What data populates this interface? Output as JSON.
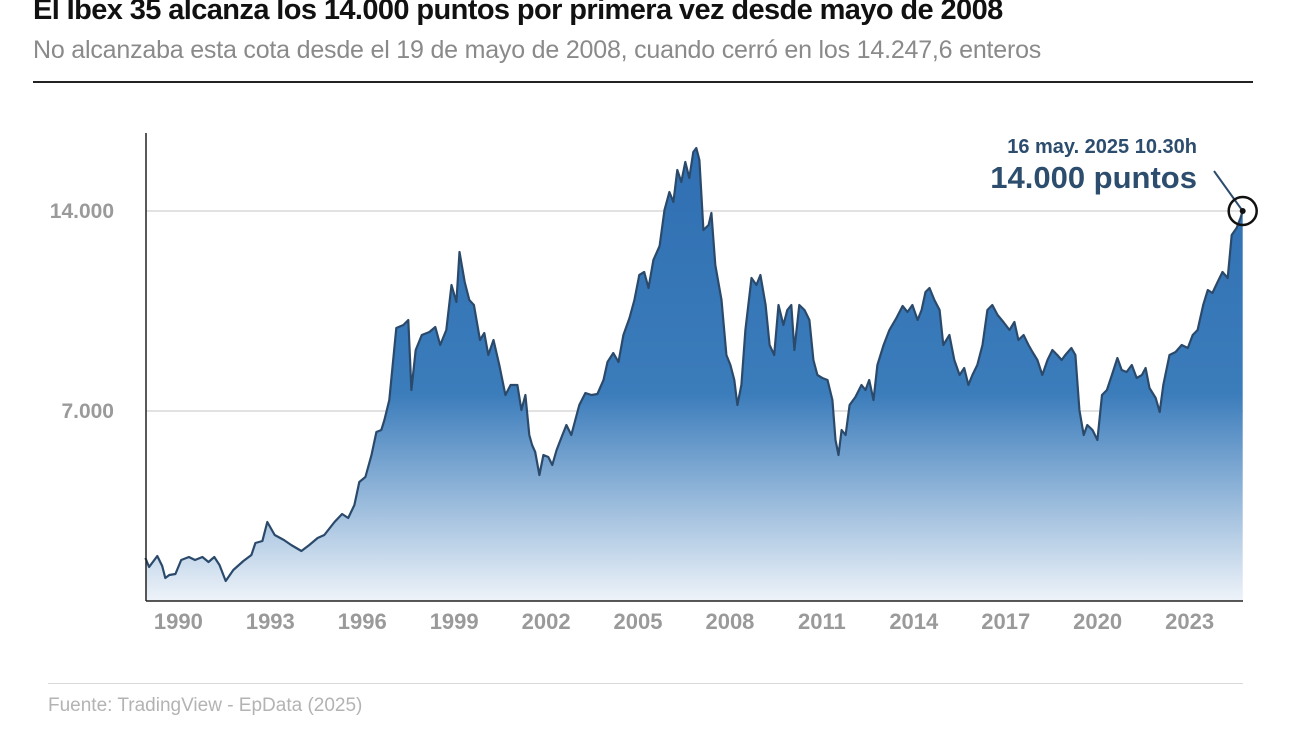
{
  "header": {
    "title": "El Ibex 35 alcanza los 14.000 puntos por primera vez desde mayo de 2008",
    "subtitle": "No alcanzaba esta cota desde el 19 de mayo de 2008, cuando cerró en los 14.247,6 enteros"
  },
  "footer": {
    "source": "Fuente: TradingView - EpData (2025)"
  },
  "chart_data": {
    "type": "area",
    "title": "",
    "xlabel": "",
    "ylabel": "",
    "xlim": [
      1989.4,
      2025.2
    ],
    "ylim": [
      350,
      16800
    ],
    "grid": "horizontal",
    "y_ticks": [
      {
        "value": 7000,
        "label": "7.000"
      },
      {
        "value": 14000,
        "label": "14.000"
      }
    ],
    "x_ticks": [
      {
        "value": 1990,
        "label": "1990"
      },
      {
        "value": 1993,
        "label": "1993"
      },
      {
        "value": 1996,
        "label": "1996"
      },
      {
        "value": 1999,
        "label": "1999"
      },
      {
        "value": 2002,
        "label": "2002"
      },
      {
        "value": 2005,
        "label": "2005"
      },
      {
        "value": 2008,
        "label": "2008"
      },
      {
        "value": 2011,
        "label": "2011"
      },
      {
        "value": 2014,
        "label": "2014"
      },
      {
        "value": 2017,
        "label": "2017"
      },
      {
        "value": 2020,
        "label": "2020"
      },
      {
        "value": 2023,
        "label": "2023"
      }
    ],
    "colors": {
      "line": "#2b4a6b",
      "fill_top": "#2f6fb2",
      "fill_bottom": "#eef3f9",
      "annotation": "#2d4d6e"
    },
    "annotation": {
      "date": "16 may. 2025 10.30h",
      "value_label": "14.000 puntos",
      "x": 2025.19,
      "y": 14000
    },
    "points": [
      [
        1989.38,
        1855
      ],
      [
        1989.5,
        1540
      ],
      [
        1989.77,
        1925
      ],
      [
        1989.93,
        1575
      ],
      [
        1990.03,
        1155
      ],
      [
        1990.16,
        1260
      ],
      [
        1990.36,
        1295
      ],
      [
        1990.55,
        1785
      ],
      [
        1990.8,
        1890
      ],
      [
        1991.0,
        1785
      ],
      [
        1991.24,
        1890
      ],
      [
        1991.44,
        1715
      ],
      [
        1991.63,
        1890
      ],
      [
        1991.8,
        1610
      ],
      [
        1992.0,
        1050
      ],
      [
        1992.25,
        1435
      ],
      [
        1992.58,
        1750
      ],
      [
        1992.84,
        1960
      ],
      [
        1992.97,
        2380
      ],
      [
        1993.2,
        2450
      ],
      [
        1993.36,
        3115
      ],
      [
        1993.6,
        2660
      ],
      [
        1993.9,
        2485
      ],
      [
        1994.14,
        2310
      ],
      [
        1994.47,
        2100
      ],
      [
        1994.73,
        2310
      ],
      [
        1995.0,
        2555
      ],
      [
        1995.22,
        2660
      ],
      [
        1995.55,
        3115
      ],
      [
        1995.8,
        3395
      ],
      [
        1996.0,
        3255
      ],
      [
        1996.2,
        3710
      ],
      [
        1996.36,
        4515
      ],
      [
        1996.56,
        4690
      ],
      [
        1996.76,
        5460
      ],
      [
        1996.92,
        6265
      ],
      [
        1997.08,
        6335
      ],
      [
        1997.18,
        6685
      ],
      [
        1997.34,
        7385
      ],
      [
        1997.57,
        9905
      ],
      [
        1997.8,
        10010
      ],
      [
        1997.96,
        10185
      ],
      [
        1998.06,
        7735
      ],
      [
        1998.2,
        9135
      ],
      [
        1998.4,
        9660
      ],
      [
        1998.65,
        9765
      ],
      [
        1998.84,
        9940
      ],
      [
        1999.0,
        9310
      ],
      [
        1999.2,
        9835
      ],
      [
        1999.37,
        11410
      ],
      [
        1999.53,
        10815
      ],
      [
        1999.63,
        12565
      ],
      [
        1999.8,
        11515
      ],
      [
        1999.95,
        10885
      ],
      [
        2000.1,
        10710
      ],
      [
        2000.3,
        9485
      ],
      [
        2000.44,
        9730
      ],
      [
        2000.57,
        8960
      ],
      [
        2000.74,
        9485
      ],
      [
        2000.93,
        8610
      ],
      [
        2001.13,
        7560
      ],
      [
        2001.3,
        7910
      ],
      [
        2001.52,
        7910
      ],
      [
        2001.65,
        7035
      ],
      [
        2001.78,
        7560
      ],
      [
        2001.91,
        6160
      ],
      [
        2002.0,
        5810
      ],
      [
        2002.1,
        5565
      ],
      [
        2002.24,
        4760
      ],
      [
        2002.37,
        5460
      ],
      [
        2002.53,
        5390
      ],
      [
        2002.66,
        5110
      ],
      [
        2002.8,
        5635
      ],
      [
        2002.99,
        6160
      ],
      [
        2003.12,
        6510
      ],
      [
        2003.28,
        6160
      ],
      [
        2003.54,
        7210
      ],
      [
        2003.74,
        7630
      ],
      [
        2003.94,
        7560
      ],
      [
        2004.13,
        7595
      ],
      [
        2004.33,
        8085
      ],
      [
        2004.46,
        8715
      ],
      [
        2004.65,
        9030
      ],
      [
        2004.82,
        8715
      ],
      [
        2004.98,
        9660
      ],
      [
        2005.18,
        10255
      ],
      [
        2005.34,
        10885
      ],
      [
        2005.5,
        11760
      ],
      [
        2005.66,
        11865
      ],
      [
        2005.8,
        11305
      ],
      [
        2005.96,
        12285
      ],
      [
        2006.16,
        12775
      ],
      [
        2006.32,
        14035
      ],
      [
        2006.48,
        14665
      ],
      [
        2006.61,
        14315
      ],
      [
        2006.74,
        15435
      ],
      [
        2006.87,
        15015
      ],
      [
        2007.0,
        15715
      ],
      [
        2007.13,
        15155
      ],
      [
        2007.26,
        16065
      ],
      [
        2007.36,
        16205
      ],
      [
        2007.46,
        15785
      ],
      [
        2007.59,
        13335
      ],
      [
        2007.76,
        13510
      ],
      [
        2007.85,
        13930
      ],
      [
        2007.98,
        12110
      ],
      [
        2008.18,
        10885
      ],
      [
        2008.34,
        8960
      ],
      [
        2008.47,
        8610
      ],
      [
        2008.6,
        8085
      ],
      [
        2008.7,
        7210
      ],
      [
        2008.83,
        7910
      ],
      [
        2008.96,
        9835
      ],
      [
        2009.16,
        11655
      ],
      [
        2009.32,
        11410
      ],
      [
        2009.45,
        11760
      ],
      [
        2009.62,
        10710
      ],
      [
        2009.75,
        9310
      ],
      [
        2009.9,
        8960
      ],
      [
        2010.04,
        10710
      ],
      [
        2010.2,
        10010
      ],
      [
        2010.33,
        10535
      ],
      [
        2010.46,
        10710
      ],
      [
        2010.56,
        9135
      ],
      [
        2010.72,
        10710
      ],
      [
        2010.89,
        10535
      ],
      [
        2011.05,
        10185
      ],
      [
        2011.18,
        8785
      ],
      [
        2011.31,
        8260
      ],
      [
        2011.47,
        8155
      ],
      [
        2011.64,
        8085
      ],
      [
        2011.8,
        7385
      ],
      [
        2011.9,
        5985
      ],
      [
        2012.0,
        5460
      ],
      [
        2012.1,
        6335
      ],
      [
        2012.23,
        6160
      ],
      [
        2012.36,
        7210
      ],
      [
        2012.55,
        7490
      ],
      [
        2012.75,
        7910
      ],
      [
        2012.88,
        7735
      ],
      [
        2013.0,
        8085
      ],
      [
        2013.14,
        7385
      ],
      [
        2013.27,
        8610
      ],
      [
        2013.47,
        9310
      ],
      [
        2013.66,
        9835
      ],
      [
        2013.89,
        10255
      ],
      [
        2014.09,
        10675
      ],
      [
        2014.25,
        10465
      ],
      [
        2014.41,
        10710
      ],
      [
        2014.58,
        10185
      ],
      [
        2014.71,
        10535
      ],
      [
        2014.84,
        11165
      ],
      [
        2014.97,
        11305
      ],
      [
        2015.13,
        10885
      ],
      [
        2015.3,
        10535
      ],
      [
        2015.42,
        9310
      ],
      [
        2015.62,
        9660
      ],
      [
        2015.78,
        8785
      ],
      [
        2015.95,
        8260
      ],
      [
        2016.1,
        8505
      ],
      [
        2016.24,
        7910
      ],
      [
        2016.37,
        8260
      ],
      [
        2016.53,
        8610
      ],
      [
        2016.7,
        9310
      ],
      [
        2016.86,
        10535
      ],
      [
        2017.02,
        10710
      ],
      [
        2017.19,
        10360
      ],
      [
        2017.38,
        10115
      ],
      [
        2017.58,
        9835
      ],
      [
        2017.74,
        10115
      ],
      [
        2017.87,
        9485
      ],
      [
        2018.04,
        9660
      ],
      [
        2018.2,
        9310
      ],
      [
        2018.33,
        9065
      ],
      [
        2018.49,
        8785
      ],
      [
        2018.65,
        8260
      ],
      [
        2018.82,
        8785
      ],
      [
        2018.98,
        9135
      ],
      [
        2019.14,
        8960
      ],
      [
        2019.28,
        8785
      ],
      [
        2019.4,
        8960
      ],
      [
        2019.6,
        9205
      ],
      [
        2019.73,
        8960
      ],
      [
        2019.86,
        7035
      ],
      [
        2020.0,
        6160
      ],
      [
        2020.12,
        6510
      ],
      [
        2020.29,
        6335
      ],
      [
        2020.45,
        5985
      ],
      [
        2020.6,
        7560
      ],
      [
        2020.76,
        7735
      ],
      [
        2020.92,
        8260
      ],
      [
        2021.1,
        8855
      ],
      [
        2021.24,
        8435
      ],
      [
        2021.4,
        8365
      ],
      [
        2021.57,
        8610
      ],
      [
        2021.73,
        8155
      ],
      [
        2021.9,
        8260
      ],
      [
        2022.02,
        8505
      ],
      [
        2022.15,
        7805
      ],
      [
        2022.35,
        7455
      ],
      [
        2022.48,
        6965
      ],
      [
        2022.6,
        7910
      ],
      [
        2022.8,
        8960
      ],
      [
        2023.0,
        9065
      ],
      [
        2023.2,
        9310
      ],
      [
        2023.4,
        9205
      ],
      [
        2023.56,
        9660
      ],
      [
        2023.72,
        9835
      ],
      [
        2023.9,
        10710
      ],
      [
        2024.05,
        11235
      ],
      [
        2024.2,
        11130
      ],
      [
        2024.37,
        11515
      ],
      [
        2024.53,
        11865
      ],
      [
        2024.7,
        11655
      ],
      [
        2024.83,
        13160
      ],
      [
        2024.99,
        13405
      ],
      [
        2025.12,
        13755
      ],
      [
        2025.19,
        14000
      ]
    ]
  }
}
